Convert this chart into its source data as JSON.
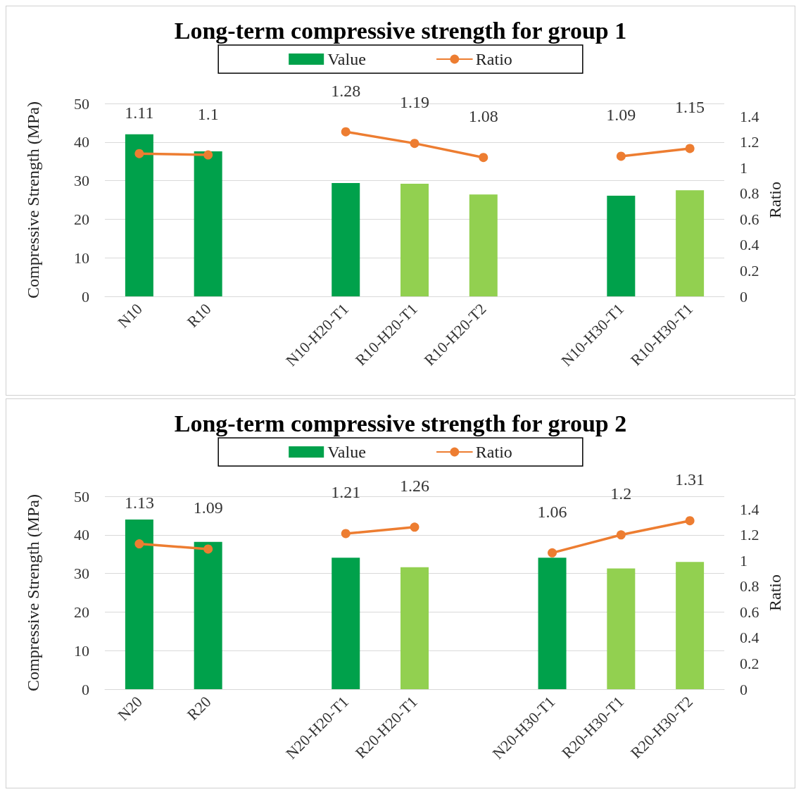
{
  "chart_data": [
    {
      "type": "bar",
      "title": "Long-term compressive strength for group 1",
      "ylabel": "Compressive Strength (MPa)",
      "y2label": "Ratio",
      "categories": [
        "N10",
        "R10",
        null,
        "N10-H20-T1",
        "R10-H20-T1",
        "R10-H20-T2",
        null,
        "N10-H30-T1",
        "R10-H30-T1"
      ],
      "series": [
        {
          "name": "Value",
          "color": "#00a14b",
          "colors": [
            "#00a14b",
            "#00a14b",
            null,
            "#00a14b",
            "#92d050",
            "#92d050",
            null,
            "#00a14b",
            "#92d050"
          ],
          "values": [
            42.0,
            37.6,
            null,
            29.4,
            29.2,
            26.4,
            null,
            26.1,
            27.5
          ]
        },
        {
          "name": "Ratio",
          "type": "line",
          "axis": "y2",
          "color": "#ed7d31",
          "values": [
            1.11,
            1.1,
            null,
            1.28,
            1.19,
            1.08,
            null,
            1.09,
            1.15
          ],
          "value_labels": [
            "1.11",
            "1.1",
            null,
            "1.28",
            "1.19",
            "1.08",
            null,
            "1.09",
            "1.15"
          ]
        }
      ],
      "ylim": [
        0,
        50
      ],
      "yticks": [
        0,
        10,
        20,
        30,
        40,
        50
      ],
      "y2lim": [
        0,
        1.5
      ],
      "y2ticks": [
        0,
        0.2,
        0.4,
        0.6,
        0.8,
        1,
        1.2,
        1.4
      ],
      "grid": "y",
      "legend": "top",
      "marker": "circle",
      "line_style": "solid"
    },
    {
      "type": "bar",
      "title": "Long-term compressive strength for group 2",
      "ylabel": "Compressive Strength (MPa)",
      "y2label": "Ratio",
      "categories": [
        "N20",
        "R20",
        null,
        "N20-H20-T1",
        "R20-H20-T1",
        null,
        "N20-H30-T1",
        "R20-H30-T1",
        "R20-H30-T2"
      ],
      "series": [
        {
          "name": "Value",
          "color": "#00a14b",
          "colors": [
            "#00a14b",
            "#00a14b",
            null,
            "#00a14b",
            "#92d050",
            null,
            "#00a14b",
            "#92d050",
            "#92d050"
          ],
          "values": [
            44.0,
            38.2,
            null,
            34.1,
            31.6,
            null,
            34.1,
            31.3,
            33.0
          ]
        },
        {
          "name": "Ratio",
          "type": "line",
          "axis": "y2",
          "color": "#ed7d31",
          "values": [
            1.13,
            1.09,
            null,
            1.21,
            1.26,
            null,
            1.06,
            1.2,
            1.31
          ],
          "value_labels": [
            "1.13",
            "1.09",
            null,
            "1.21",
            "1.26",
            null,
            "1.06",
            "1.2",
            "1.31"
          ]
        }
      ],
      "ylim": [
        0,
        50
      ],
      "yticks": [
        0,
        10,
        20,
        30,
        40,
        50
      ],
      "y2lim": [
        0,
        1.5
      ],
      "y2ticks": [
        0,
        0.2,
        0.4,
        0.6,
        0.8,
        1,
        1.2,
        1.4
      ],
      "grid": "y",
      "legend": "top",
      "marker": "circle",
      "line_style": "solid"
    }
  ]
}
